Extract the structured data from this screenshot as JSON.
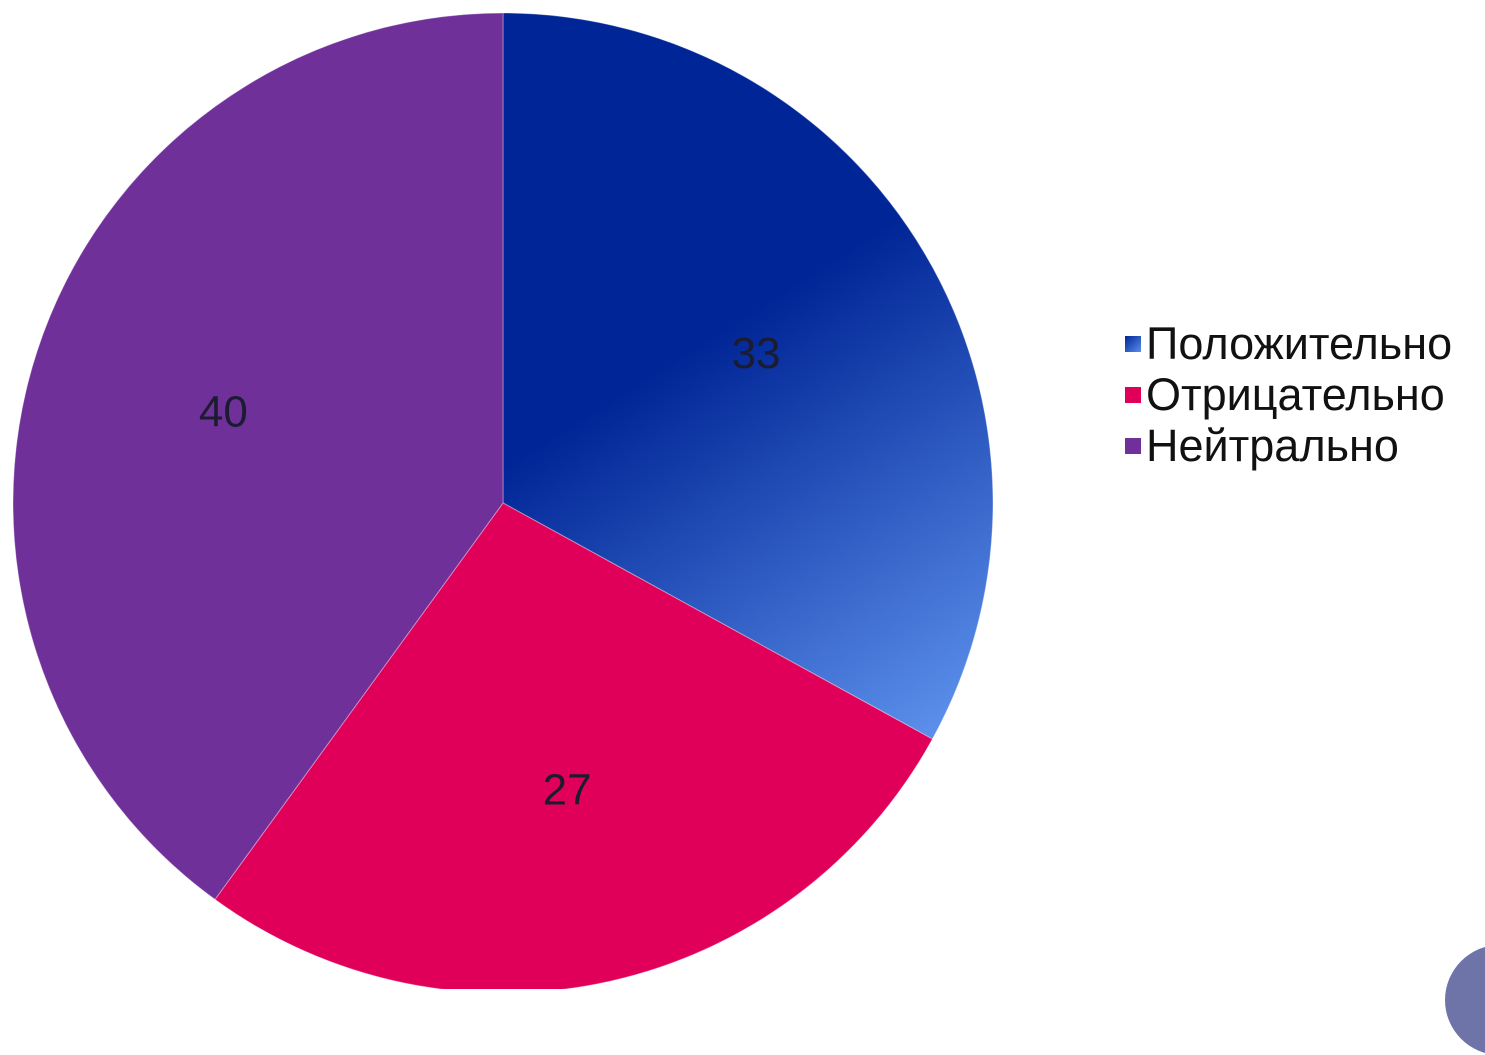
{
  "chart_data": {
    "type": "pie",
    "title": "",
    "slices": [
      {
        "name": "Положительно",
        "value": 33,
        "label": "33",
        "color": "#002596",
        "color_light": "#5a8eea"
      },
      {
        "name": "Отрицательно",
        "value": 27,
        "label": "27",
        "color": "#e0005a"
      },
      {
        "name": "Нейтрально",
        "value": 40,
        "label": "40",
        "color": "#70309a"
      }
    ],
    "start_angle": "12 o'clock",
    "direction": "clockwise",
    "legend_position": "right"
  }
}
